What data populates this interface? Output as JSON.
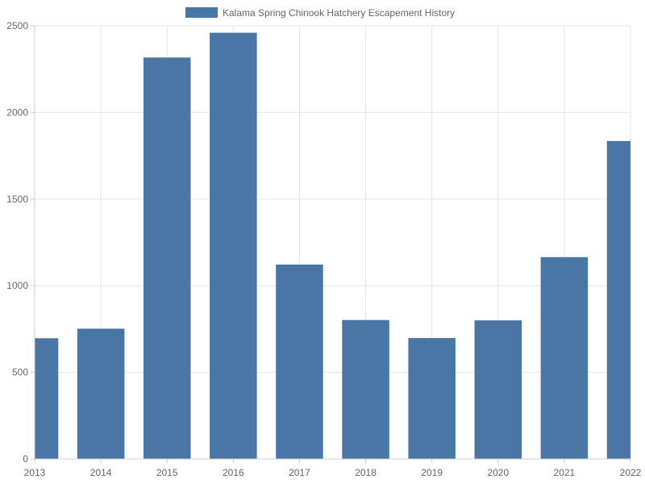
{
  "chart_data": {
    "type": "bar",
    "categories": [
      "2013",
      "2014",
      "2015",
      "2016",
      "2017",
      "2018",
      "2019",
      "2020",
      "2021",
      "2022"
    ],
    "series": [
      {
        "name": "Kalama Spring Chinook Hatchery Escapement History",
        "values": [
          697,
          752,
          2317,
          2460,
          1122,
          802,
          698,
          800,
          1165,
          1835
        ]
      }
    ],
    "ylim": [
      0,
      2500
    ],
    "yticks": [
      0,
      500,
      1000,
      1500,
      2000,
      2500
    ],
    "grid": true,
    "legend_position": "top-center",
    "colors": {
      "bar": "#4a76a6",
      "grid": "#e5e5e5",
      "axis": "#cccccc",
      "text": "#666666"
    }
  }
}
